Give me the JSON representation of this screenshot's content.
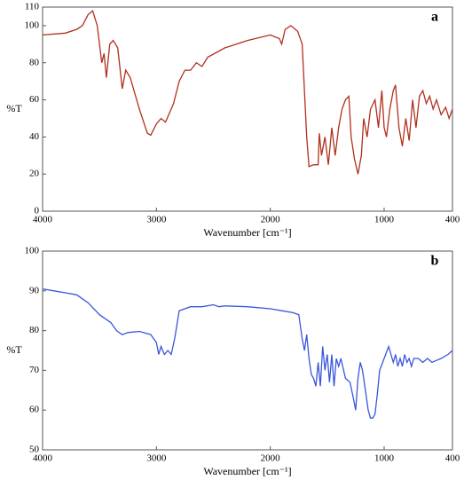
{
  "chart_data": [
    {
      "type": "line",
      "annotation": "a",
      "ylabel": "%T",
      "xlabel": "Wavenumber [cm⁻¹]",
      "xlim": [
        4000,
        400
      ],
      "xticks": [
        4000,
        3000,
        2000,
        1000,
        400
      ],
      "ylim": [
        0,
        110
      ],
      "yticks": [
        0,
        20,
        40,
        60,
        80,
        100,
        110
      ],
      "series": [
        {
          "color": "#b0301e",
          "x": [
            4000,
            3800,
            3700,
            3650,
            3600,
            3560,
            3520,
            3480,
            3460,
            3440,
            3410,
            3380,
            3340,
            3300,
            3270,
            3230,
            3150,
            3080,
            3050,
            3000,
            2960,
            2920,
            2850,
            2800,
            2750,
            2700,
            2650,
            2600,
            2550,
            2400,
            2200,
            2000,
            1920,
            1900,
            1870,
            1820,
            1760,
            1720,
            1680,
            1660,
            1620,
            1580,
            1570,
            1550,
            1520,
            1490,
            1460,
            1430,
            1400,
            1370,
            1340,
            1310,
            1290,
            1260,
            1230,
            1200,
            1180,
            1150,
            1120,
            1080,
            1050,
            1020,
            1000,
            980,
            950,
            920,
            900,
            870,
            840,
            810,
            780,
            750,
            720,
            690,
            660,
            630,
            600,
            570,
            540,
            500,
            460,
            430,
            400
          ],
          "values": [
            95,
            96,
            98,
            100,
            106,
            108,
            100,
            80,
            85,
            72,
            90,
            92,
            88,
            66,
            76,
            72,
            55,
            42,
            41,
            47,
            50,
            48,
            58,
            70,
            76,
            76,
            80,
            78,
            83,
            88,
            92,
            95,
            93,
            90,
            98,
            100,
            97,
            90,
            40,
            24,
            25,
            25,
            42,
            30,
            40,
            25,
            45,
            30,
            45,
            55,
            60,
            62,
            40,
            28,
            20,
            30,
            50,
            40,
            55,
            60,
            45,
            65,
            45,
            40,
            55,
            65,
            68,
            45,
            35,
            50,
            38,
            60,
            45,
            62,
            65,
            58,
            62,
            55,
            60,
            52,
            56,
            50,
            55
          ]
        }
      ]
    },
    {
      "type": "line",
      "annotation": "b",
      "ylabel": "%T",
      "xlabel": "Wavenumber [cm⁻¹]",
      "xlim": [
        4000,
        400
      ],
      "xticks": [
        4000,
        3000,
        2000,
        1000,
        400
      ],
      "ylim": [
        50,
        100
      ],
      "yticks": [
        50,
        60,
        70,
        80,
        90,
        100
      ],
      "series": [
        {
          "color": "#3a55dd",
          "x": [
            4000,
            3900,
            3800,
            3700,
            3650,
            3600,
            3500,
            3450,
            3400,
            3350,
            3300,
            3250,
            3150,
            3050,
            3000,
            2980,
            2960,
            2930,
            2900,
            2870,
            2840,
            2800,
            2700,
            2600,
            2500,
            2450,
            2400,
            2200,
            2000,
            1900,
            1800,
            1750,
            1720,
            1700,
            1680,
            1660,
            1640,
            1620,
            1600,
            1580,
            1560,
            1540,
            1520,
            1500,
            1480,
            1460,
            1440,
            1420,
            1400,
            1380,
            1340,
            1300,
            1270,
            1250,
            1230,
            1210,
            1190,
            1160,
            1140,
            1120,
            1100,
            1080,
            1060,
            1040,
            1000,
            960,
            940,
            920,
            900,
            880,
            860,
            840,
            820,
            800,
            780,
            760,
            740,
            700,
            660,
            620,
            580,
            540,
            500,
            440,
            400
          ],
          "values": [
            90.5,
            90,
            89.5,
            89,
            88,
            87,
            84,
            83,
            82,
            80,
            79,
            79.5,
            79.8,
            79,
            77,
            74,
            76,
            74,
            75,
            74,
            78,
            85,
            86,
            86,
            86.5,
            86,
            86.2,
            86,
            85.5,
            85,
            84.5,
            84,
            78,
            75,
            79,
            73,
            69,
            68,
            66,
            72,
            66,
            76,
            70,
            74,
            67,
            74,
            66,
            73,
            71,
            73,
            68,
            67,
            63,
            60,
            68,
            72,
            70,
            64,
            60,
            58,
            58,
            59,
            64,
            70,
            73,
            76,
            74,
            72,
            74,
            71,
            73,
            71,
            74,
            72,
            73,
            71,
            73,
            73,
            72,
            73,
            72,
            72.5,
            73,
            74,
            75
          ]
        }
      ]
    }
  ]
}
